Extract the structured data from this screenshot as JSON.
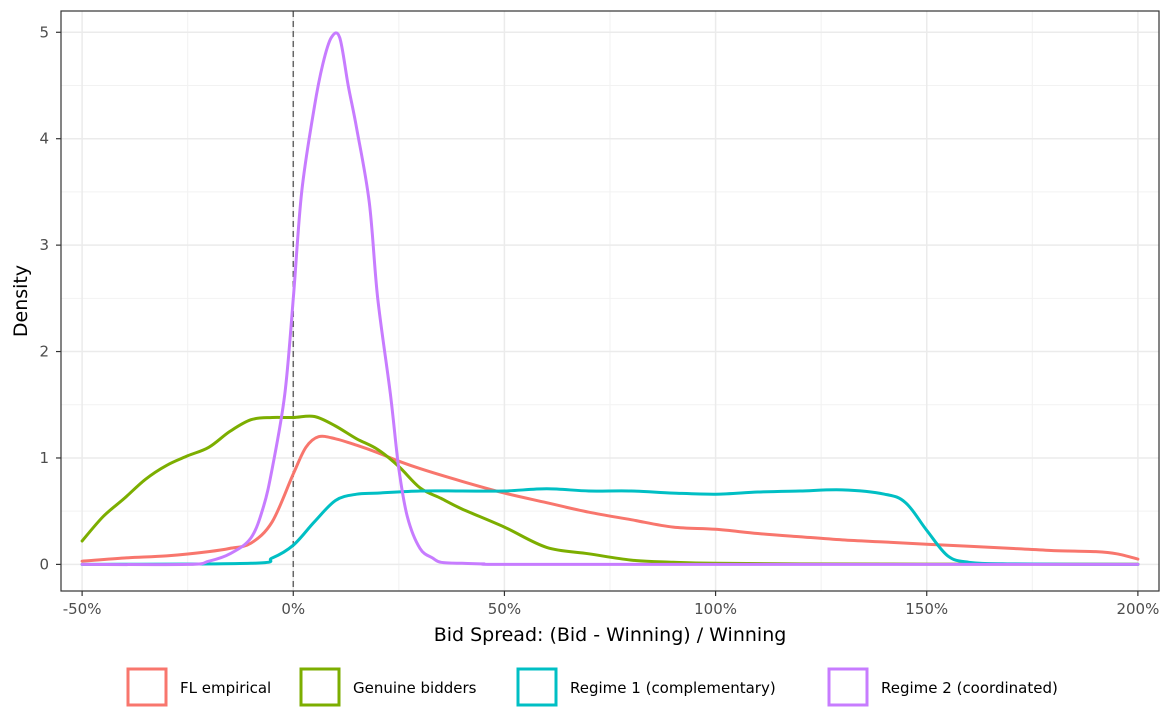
{
  "chart_data": {
    "type": "line",
    "xlabel": "Bid Spread: (Bid - Winning) / Winning",
    "ylabel": "Density",
    "xlim": [
      -0.55,
      2.05
    ],
    "ylim": [
      -0.25,
      5.2
    ],
    "x_ticks": [
      -0.5,
      0,
      0.5,
      1,
      1.5,
      2
    ],
    "x_tick_labels": [
      "-50%",
      "0%",
      "50%",
      "100%",
      "150%",
      "200%"
    ],
    "y_ticks": [
      0,
      1,
      2,
      3,
      4,
      5
    ],
    "y_tick_labels": [
      "0",
      "1",
      "2",
      "3",
      "4",
      "5"
    ],
    "grid": true,
    "vline": {
      "x": 0,
      "style": "dashed",
      "color": "#666666"
    },
    "legend_position": "bottom",
    "series": [
      {
        "name": "FL empirical",
        "color": "#F8766D",
        "x": [
          -0.5,
          -0.4,
          -0.3,
          -0.2,
          -0.15,
          -0.1,
          -0.05,
          0,
          0.03,
          0.06,
          0.1,
          0.15,
          0.2,
          0.25,
          0.3,
          0.4,
          0.5,
          0.6,
          0.7,
          0.8,
          0.9,
          1.0,
          1.1,
          1.2,
          1.3,
          1.4,
          1.5,
          1.6,
          1.7,
          1.8,
          1.9,
          1.95,
          2.0
        ],
        "y": [
          0.03,
          0.06,
          0.08,
          0.12,
          0.15,
          0.2,
          0.4,
          0.85,
          1.1,
          1.2,
          1.18,
          1.12,
          1.05,
          0.97,
          0.9,
          0.78,
          0.67,
          0.58,
          0.49,
          0.42,
          0.35,
          0.33,
          0.29,
          0.26,
          0.23,
          0.21,
          0.19,
          0.17,
          0.15,
          0.13,
          0.12,
          0.1,
          0.05
        ]
      },
      {
        "name": "Genuine bidders",
        "color": "#7CAE00",
        "x": [
          -0.5,
          -0.45,
          -0.4,
          -0.35,
          -0.3,
          -0.25,
          -0.2,
          -0.15,
          -0.1,
          -0.05,
          0,
          0.05,
          0.1,
          0.15,
          0.2,
          0.25,
          0.3,
          0.35,
          0.4,
          0.5,
          0.6,
          0.7,
          0.8,
          0.9,
          1.0,
          1.2,
          1.5,
          2.0
        ],
        "y": [
          0.22,
          0.45,
          0.62,
          0.8,
          0.93,
          1.02,
          1.1,
          1.25,
          1.36,
          1.38,
          1.38,
          1.39,
          1.3,
          1.18,
          1.08,
          0.92,
          0.72,
          0.62,
          0.52,
          0.35,
          0.16,
          0.1,
          0.04,
          0.02,
          0.01,
          0.005,
          0.003,
          0.001
        ]
      },
      {
        "name": "Regime 1 (complementary)",
        "color": "#00BFC4",
        "x": [
          -0.5,
          -0.1,
          -0.05,
          0,
          0.05,
          0.1,
          0.15,
          0.2,
          0.3,
          0.4,
          0.5,
          0.6,
          0.7,
          0.8,
          0.9,
          1.0,
          1.1,
          1.2,
          1.3,
          1.4,
          1.45,
          1.5,
          1.55,
          1.6,
          1.7,
          2.0
        ],
        "y": [
          0,
          0.01,
          0.06,
          0.18,
          0.4,
          0.6,
          0.66,
          0.67,
          0.69,
          0.69,
          0.69,
          0.71,
          0.69,
          0.69,
          0.67,
          0.66,
          0.68,
          0.69,
          0.7,
          0.66,
          0.58,
          0.32,
          0.08,
          0.02,
          0.005,
          0
        ]
      },
      {
        "name": "Regime 2 (coordinated)",
        "color": "#C77CFF",
        "x": [
          -0.5,
          -0.25,
          -0.2,
          -0.15,
          -0.1,
          -0.07,
          -0.05,
          -0.02,
          0,
          0.02,
          0.05,
          0.07,
          0.09,
          0.11,
          0.13,
          0.15,
          0.18,
          0.2,
          0.23,
          0.25,
          0.27,
          0.3,
          0.33,
          0.35,
          0.4,
          0.45,
          0.5,
          1.0,
          2.0
        ],
        "y": [
          0,
          0,
          0.03,
          0.1,
          0.25,
          0.55,
          0.9,
          1.6,
          2.5,
          3.5,
          4.3,
          4.7,
          4.95,
          4.95,
          4.5,
          4.1,
          3.4,
          2.5,
          1.6,
          0.9,
          0.45,
          0.15,
          0.06,
          0.02,
          0.01,
          0.005,
          0,
          0,
          0
        ]
      }
    ]
  }
}
